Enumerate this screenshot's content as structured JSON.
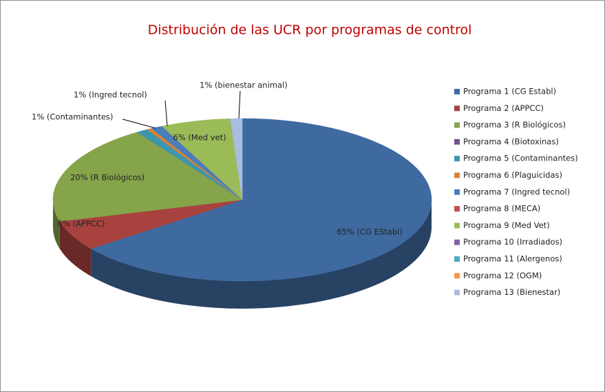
{
  "chart_data": {
    "type": "pie",
    "title": "Distribución de las UCR por programas de control",
    "categories": [
      "Programa 1 (CG Establ)",
      "Programa 2 (APPCC)",
      "Programa 3 (R Biológicos)",
      "Programa 4 (Biotoxinas)",
      "Programa 5 (Contaminantes)",
      "Programa 6 (Plaguicidas)",
      "Programa 7 (Ingred tecnol)",
      "Programa 8 (MECA)",
      "Programa 9 (Med Vet)",
      "Programa 10 (Irradiados)",
      "Programa 11 (Alergenos)",
      "Programa 12 (OGM)",
      "Programa 13 (Bienestar)"
    ],
    "values": [
      65,
      6,
      20,
      0,
      1,
      0.4,
      1,
      0,
      6,
      0,
      0,
      0,
      1
    ],
    "value_labels": [
      "65% (CG EStabl)",
      "6% (APPCC)",
      "20% (R Biológicos)",
      null,
      "1% (Contaminantes)",
      null,
      "1% (Ingred tecnol)",
      null,
      "6% (Med vet)",
      null,
      null,
      null,
      "1% (bienestar animal)"
    ],
    "colors": [
      "#3f6aa0",
      "#a8423f",
      "#86a44a",
      "#6e548d",
      "#3d96ae",
      "#da8137",
      "#4a7ebb",
      "#c0504d",
      "#9bbb59",
      "#8064a2",
      "#4bacc6",
      "#f79646",
      "#a9bde0"
    ],
    "legend": "right"
  }
}
